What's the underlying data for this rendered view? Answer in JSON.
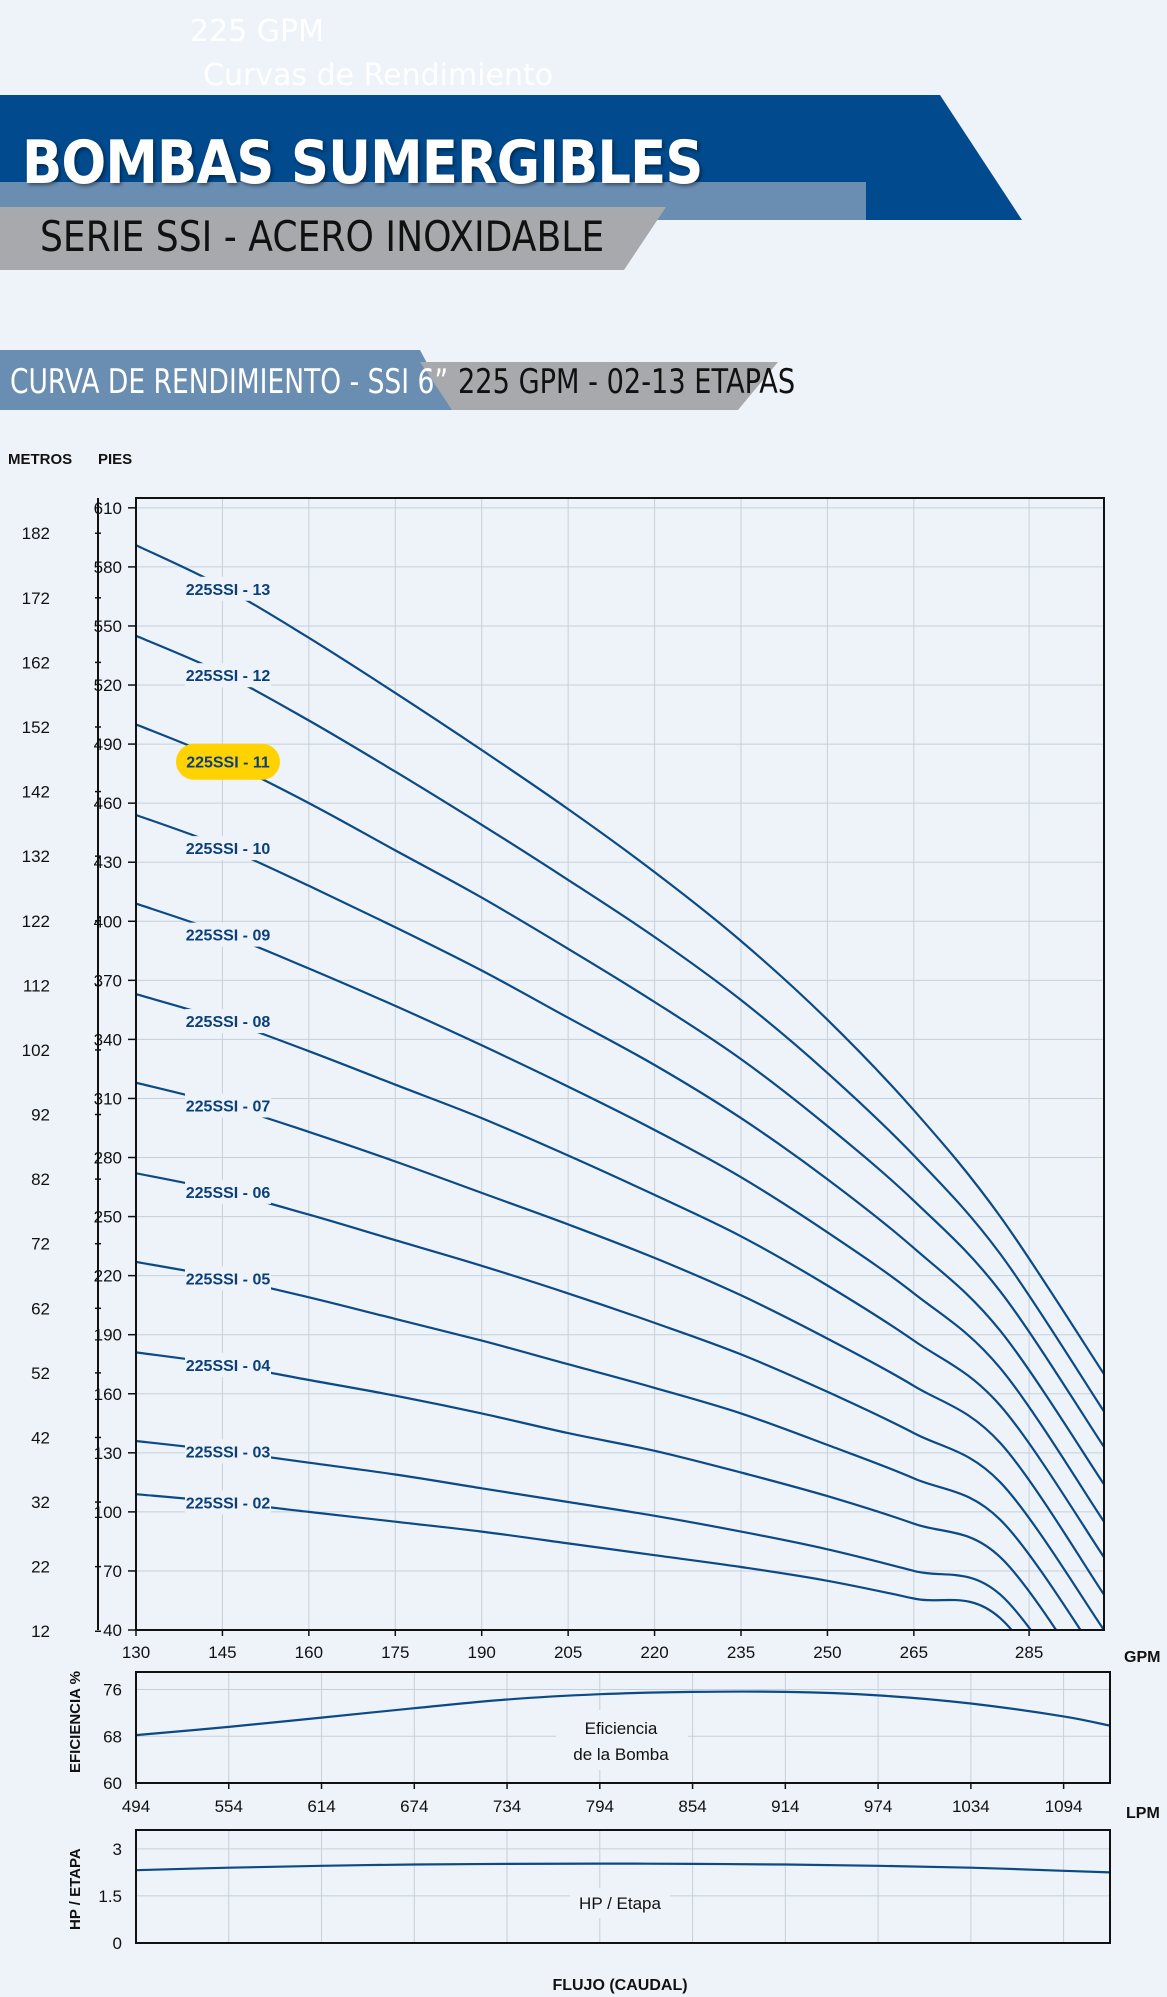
{
  "page": {
    "ghost_title": "225 GPM",
    "ghost_subtitle": "Curvas de Rendimiento",
    "title": "BOMBAS SUMERGIBLES",
    "subtitle": "SERIE SSI - ACERO INOXIDABLE",
    "section_title": "CURVA DE RENDIMIENTO - SSI 6”",
    "section_subtitle": "225 GPM - 02-13 ETAPAS",
    "colors": {
      "navy": "#004a8d",
      "steel": "#6a8db2",
      "gray": "#a7a9ac",
      "curve": "#0b4a86",
      "highlight": "#ffd200",
      "label": "#0b3f7a"
    }
  },
  "chart_data": [
    {
      "type": "line",
      "name": "head",
      "ylabel_left": "METROS",
      "ylabel_right": "PIES",
      "xlabel": "GPM",
      "xlim": [
        130,
        298
      ],
      "ylim": [
        40,
        615
      ],
      "x_ticks": [
        "130",
        "145",
        "160",
        "175",
        "190",
        "205",
        "220",
        "235",
        "250",
        "265",
        "285"
      ],
      "y_ticks_ft": [
        "610",
        "580",
        "550",
        "520",
        "490",
        "460",
        "430",
        "400",
        "370",
        "340",
        "310",
        "280",
        "250",
        "220",
        "190",
        "160",
        "130",
        "100",
        "70",
        "40"
      ],
      "y_ticks_m": [
        "182",
        "172",
        "162",
        "152",
        "142",
        "132",
        "122",
        "112",
        "102",
        "92",
        "82",
        "72",
        "62",
        "52",
        "42",
        "32",
        "22",
        "12"
      ],
      "grid": true,
      "highlighted": "225SSI - 11",
      "x": [
        130,
        145,
        160,
        175,
        190,
        205,
        220,
        235,
        250,
        265,
        280,
        298
      ],
      "series": [
        {
          "name": "225SSI - 13",
          "values": [
            591,
            570,
            544,
            516,
            487,
            457,
            425,
            390,
            350,
            304,
            250,
            170
          ]
        },
        {
          "name": "225SSI - 12",
          "values": [
            545,
            526,
            502,
            476,
            449,
            421,
            392,
            360,
            323,
            281,
            231,
            151
          ]
        },
        {
          "name": "225SSI - 11",
          "values": [
            500,
            482,
            460,
            436,
            412,
            386,
            359,
            330,
            296,
            258,
            212,
            133
          ]
        },
        {
          "name": "225SSI - 10",
          "values": [
            454,
            438,
            418,
            397,
            375,
            351,
            327,
            300,
            269,
            234,
            192,
            114
          ]
        },
        {
          "name": "225SSI - 09",
          "values": [
            409,
            394,
            376,
            357,
            337,
            316,
            294,
            270,
            242,
            211,
            173,
            95
          ]
        },
        {
          "name": "225SSI - 08",
          "values": [
            363,
            350,
            334,
            317,
            300,
            281,
            261,
            240,
            215,
            187,
            154,
            77
          ]
        },
        {
          "name": "225SSI - 07",
          "values": [
            318,
            307,
            293,
            278,
            262,
            246,
            229,
            210,
            188,
            164,
            135,
            58
          ]
        },
        {
          "name": "225SSI - 06",
          "values": [
            272,
            263,
            251,
            238,
            225,
            211,
            196,
            180,
            161,
            140,
            115,
            40
          ]
        },
        {
          "name": "225SSI - 05",
          "values": [
            227,
            219,
            209,
            198,
            187,
            175,
            163,
            150,
            134,
            117,
            96,
            22
          ]
        },
        {
          "name": "225SSI - 04",
          "values": [
            181,
            175,
            167,
            159,
            150,
            140,
            131,
            120,
            108,
            94,
            77,
            3
          ]
        },
        {
          "name": "225SSI - 03",
          "values": [
            136,
            131,
            125,
            119,
            112,
            105,
            98,
            90,
            81,
            70,
            58,
            -15
          ]
        },
        {
          "name": "225SSI - 02",
          "values": [
            109,
            105,
            100,
            95,
            90,
            84,
            78,
            72,
            65,
            56,
            46,
            -30
          ]
        }
      ]
    },
    {
      "type": "line",
      "name": "efficiency",
      "ylabel": "EFICIENCIA %",
      "xlabel": "LPM",
      "annotation": [
        "Eficiencia",
        "de la Bomba"
      ],
      "xlim": [
        494,
        1124
      ],
      "ylim": [
        60,
        79
      ],
      "x_ticks": [
        "494",
        "554",
        "614",
        "674",
        "734",
        "794",
        "854",
        "914",
        "974",
        "1034",
        "1094"
      ],
      "y_ticks": [
        "76",
        "68",
        "60"
      ],
      "x": [
        494,
        554,
        614,
        674,
        734,
        794,
        854,
        914,
        974,
        1034,
        1094,
        1124
      ],
      "values": [
        68.2,
        69.6,
        71.2,
        72.8,
        74.3,
        75.2,
        75.6,
        75.6,
        75.0,
        73.6,
        71.4,
        69.8
      ]
    },
    {
      "type": "line",
      "name": "hp_per_stage",
      "ylabel": "HP / ETAPA",
      "xlabel": "FLUJO (CAUDAL)",
      "annotation": "HP / Etapa",
      "xlim": [
        494,
        1124
      ],
      "ylim": [
        0,
        3.6
      ],
      "y_ticks": [
        "3",
        "1.5",
        "0"
      ],
      "x": [
        494,
        554,
        614,
        674,
        734,
        794,
        854,
        914,
        974,
        1034,
        1094,
        1124
      ],
      "values": [
        2.32,
        2.4,
        2.46,
        2.5,
        2.52,
        2.53,
        2.52,
        2.5,
        2.46,
        2.4,
        2.3,
        2.25
      ]
    }
  ]
}
